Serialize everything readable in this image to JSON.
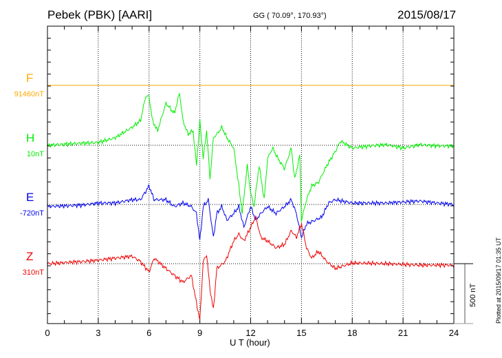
{
  "header": {
    "station": "Pebek (PBK)  [AARI]",
    "coords": "GG ( 70.09°, 170.93°)",
    "date": "2015/08/17"
  },
  "footer": {
    "plotted": "Plotted at 2015/09/17 01:35 UT"
  },
  "chart_data": {
    "type": "line",
    "xlabel": "U T (hour)",
    "xlim": [
      0,
      24
    ],
    "xticks": [
      "0",
      "3",
      "6",
      "9",
      "12",
      "15",
      "18",
      "21",
      "24"
    ],
    "scale_bar": {
      "label": "500 nT",
      "value": 500
    },
    "series": [
      {
        "name": "F",
        "baseline_label": "91460nT",
        "color": "#ffaa00",
        "points": [
          [
            0,
            0
          ],
          [
            24,
            0
          ]
        ]
      },
      {
        "name": "H",
        "baseline_label": "10nT",
        "color": "#00ee00",
        "points": [
          [
            0,
            0
          ],
          [
            2,
            17
          ],
          [
            3,
            23
          ],
          [
            4,
            63
          ],
          [
            5,
            150
          ],
          [
            5.5,
            207
          ],
          [
            5.8,
            408
          ],
          [
            6,
            408
          ],
          [
            6.2,
            207
          ],
          [
            6.5,
            121
          ],
          [
            7,
            351
          ],
          [
            7.5,
            265
          ],
          [
            7.8,
            437
          ],
          [
            8,
            207
          ],
          [
            8.3,
            92
          ],
          [
            8.6,
            121
          ],
          [
            8.8,
            -167
          ],
          [
            9,
            207
          ],
          [
            9.2,
            -109
          ],
          [
            9.4,
            121
          ],
          [
            9.6,
            -282
          ],
          [
            9.8,
            63
          ],
          [
            10,
            92
          ],
          [
            10.3,
            150
          ],
          [
            10.6,
            63
          ],
          [
            11,
            -23
          ],
          [
            11.3,
            -339
          ],
          [
            11.5,
            -569
          ],
          [
            11.8,
            -167
          ],
          [
            12,
            -397
          ],
          [
            12.2,
            -512
          ],
          [
            12.5,
            -167
          ],
          [
            12.8,
            -454
          ],
          [
            13,
            -109
          ],
          [
            13.3,
            -23
          ],
          [
            13.6,
            -109
          ],
          [
            14,
            -196
          ],
          [
            14.4,
            -23
          ],
          [
            14.6,
            -282
          ],
          [
            14.9,
            -81
          ],
          [
            15,
            -627
          ],
          [
            15.3,
            -454
          ],
          [
            15.6,
            -339
          ],
          [
            16,
            -311
          ],
          [
            16.5,
            -167
          ],
          [
            17,
            -52
          ],
          [
            17.3,
            35
          ],
          [
            18,
            -23
          ],
          [
            19,
            -6
          ],
          [
            20,
            6
          ],
          [
            21,
            -23
          ],
          [
            22,
            6
          ],
          [
            23,
            -6
          ],
          [
            24,
            -6
          ]
        ]
      },
      {
        "name": "E",
        "baseline_label": "-720nT",
        "color": "#0000ee",
        "points": [
          [
            0,
            -17
          ],
          [
            2,
            -6
          ],
          [
            3,
            12
          ],
          [
            4,
            12
          ],
          [
            5,
            40
          ],
          [
            5.5,
            40
          ],
          [
            6,
            155
          ],
          [
            6.3,
            40
          ],
          [
            7,
            40
          ],
          [
            7.5,
            -17
          ],
          [
            8,
            12
          ],
          [
            8.5,
            -17
          ],
          [
            8.8,
            -75
          ],
          [
            9,
            -305
          ],
          [
            9.2,
            -17
          ],
          [
            9.5,
            40
          ],
          [
            9.8,
            -276
          ],
          [
            10,
            -75
          ],
          [
            10.3,
            -17
          ],
          [
            10.6,
            -132
          ],
          [
            11,
            -75
          ],
          [
            11.3,
            -17
          ],
          [
            11.6,
            -190
          ],
          [
            12,
            -17
          ],
          [
            12.3,
            -132
          ],
          [
            12.6,
            -75
          ],
          [
            13,
            -17
          ],
          [
            13.5,
            -75
          ],
          [
            14,
            -17
          ],
          [
            14.4,
            40
          ],
          [
            14.7,
            -75
          ],
          [
            15,
            -276
          ],
          [
            15.3,
            -161
          ],
          [
            15.8,
            -132
          ],
          [
            16.2,
            -104
          ],
          [
            16.6,
            12
          ],
          [
            17,
            40
          ],
          [
            18,
            12
          ],
          [
            20,
            12
          ],
          [
            22,
            29
          ],
          [
            23,
            12
          ],
          [
            24,
            0
          ]
        ]
      },
      {
        "name": "Z",
        "baseline_label": "310nT",
        "color": "#ee0000",
        "points": [
          [
            0,
            0
          ],
          [
            2,
            17
          ],
          [
            3,
            29
          ],
          [
            4,
            46
          ],
          [
            5,
            63
          ],
          [
            5.5,
            17
          ],
          [
            6,
            -69
          ],
          [
            6.3,
            46
          ],
          [
            7,
            -40
          ],
          [
            7.5,
            -98
          ],
          [
            8,
            -155
          ],
          [
            8.5,
            -98
          ],
          [
            8.8,
            -328
          ],
          [
            9,
            -472
          ],
          [
            9.2,
            17
          ],
          [
            9.4,
            75
          ],
          [
            9.6,
            -213
          ],
          [
            9.8,
            -385
          ],
          [
            10,
            -40
          ],
          [
            10.5,
            17
          ],
          [
            11,
            190
          ],
          [
            11.3,
            247
          ],
          [
            11.6,
            190
          ],
          [
            12,
            305
          ],
          [
            12.3,
            391
          ],
          [
            12.6,
            219
          ],
          [
            13,
            190
          ],
          [
            13.5,
            132
          ],
          [
            14,
            161
          ],
          [
            14.4,
            276
          ],
          [
            14.7,
            219
          ],
          [
            15,
            334
          ],
          [
            15.3,
            132
          ],
          [
            15.6,
            46
          ],
          [
            16,
            104
          ],
          [
            16.5,
            17
          ],
          [
            17,
            -40
          ],
          [
            18,
            6
          ],
          [
            20,
            0
          ],
          [
            22,
            -12
          ],
          [
            24,
            -12
          ]
        ]
      }
    ]
  }
}
